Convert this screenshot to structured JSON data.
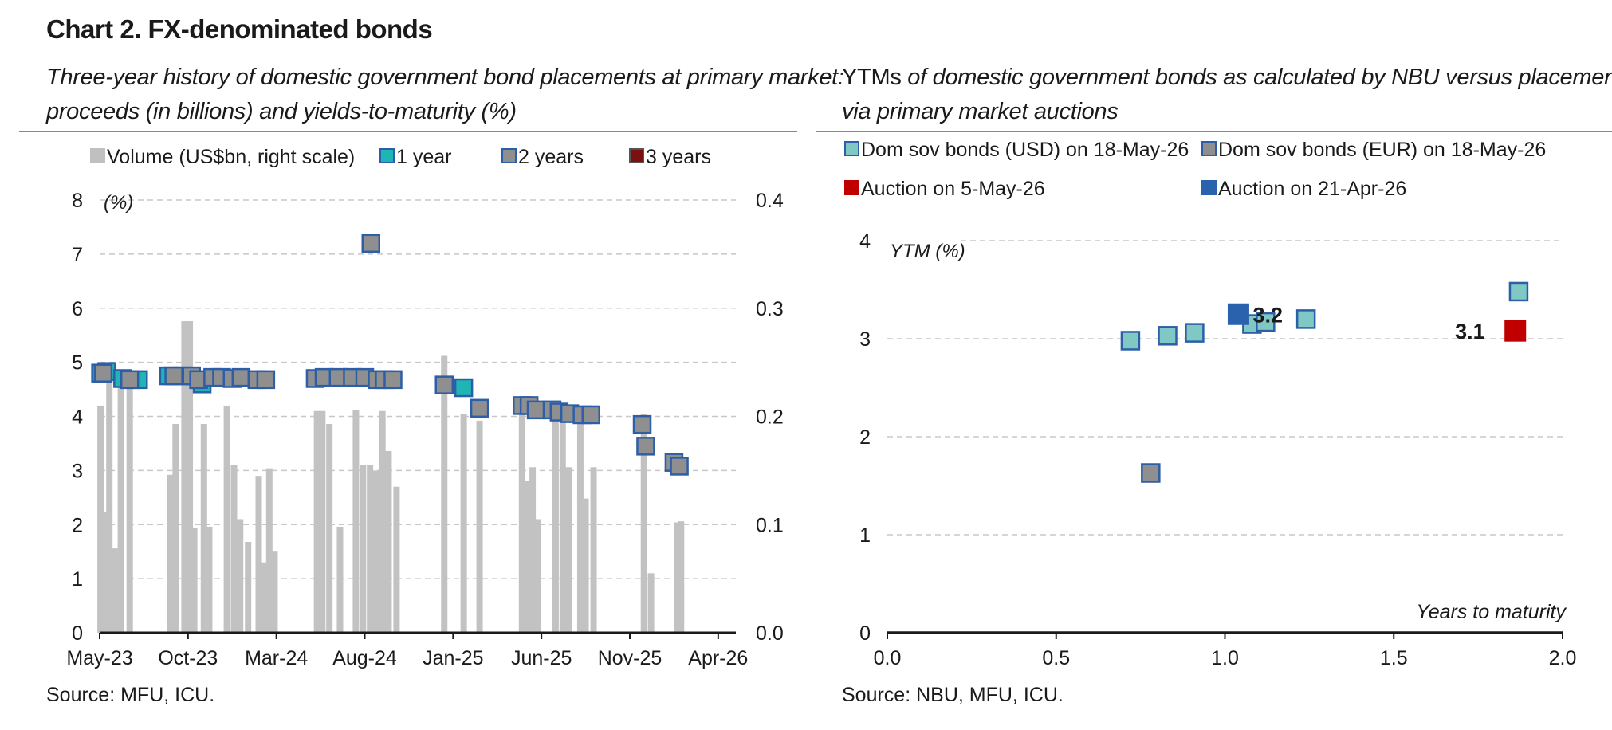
{
  "header": {
    "title": "Chart 2. FX-denominated bonds"
  },
  "left": {
    "subtitle_line1": "Three-year history of domestic government bond placements at primary market:",
    "subtitle_line2": "proceeds (in billions) and yields-to-maturity (%)",
    "source": "Source: MFU, ICU."
  },
  "right": {
    "subtitle_ytms": "YTMs",
    "subtitle_line1_rest": " of domestic government bonds as calculated by NBU versus placements",
    "subtitle_line2": "via primary market auctions",
    "source": "Source: NBU, MFU, ICU."
  },
  "chart_data": [
    {
      "type": "bar+scatter",
      "legend_position": "top",
      "left_axis": {
        "label": "(%)",
        "min": 0,
        "max": 8,
        "ticks": [
          "0",
          "1",
          "2",
          "3",
          "4",
          "5",
          "6",
          "7",
          "8"
        ]
      },
      "right_axis": {
        "min": 0,
        "max": 0.4,
        "ticks": [
          "0.0",
          "0.1",
          "0.2",
          "0.3",
          "0.4"
        ]
      },
      "x_ticks": [
        "May-23",
        "Oct-23",
        "Mar-24",
        "Aug-24",
        "Jan-25",
        "Jun-25",
        "Nov-25",
        "Apr-26"
      ],
      "x_range": [
        0,
        36
      ],
      "grid": true,
      "legend": [
        {
          "label": "Volume (US$bn, right scale)",
          "color": "#c0c0c0",
          "border": "#c0c0c0"
        },
        {
          "label": "1 year",
          "color": "#1fb5b5",
          "border": "#2c5fa8"
        },
        {
          "label": "2 years",
          "color": "#8f8f8f",
          "border": "#2c5fa8"
        },
        {
          "label": "3 years",
          "color": "#7a1010",
          "border": "#555555"
        }
      ],
      "volume_bars": [
        [
          0.05,
          0.21
        ],
        [
          0.2,
          0.112
        ],
        [
          0.55,
          0.235
        ],
        [
          0.85,
          0.078
        ],
        [
          1.2,
          0.228
        ],
        [
          1.7,
          0.235
        ],
        [
          4.0,
          0.146
        ],
        [
          4.3,
          0.193
        ],
        [
          4.8,
          0.288
        ],
        [
          5.1,
          0.288
        ],
        [
          5.35,
          0.097
        ],
        [
          5.9,
          0.193
        ],
        [
          6.2,
          0.098
        ],
        [
          7.2,
          0.21
        ],
        [
          7.6,
          0.155
        ],
        [
          7.95,
          0.105
        ],
        [
          8.4,
          0.084
        ],
        [
          9.0,
          0.145
        ],
        [
          9.3,
          0.065
        ],
        [
          9.6,
          0.152
        ],
        [
          9.9,
          0.075
        ],
        [
          12.3,
          0.205
        ],
        [
          12.6,
          0.205
        ],
        [
          13.0,
          0.193
        ],
        [
          13.6,
          0.098
        ],
        [
          14.5,
          0.206
        ],
        [
          14.9,
          0.155
        ],
        [
          15.3,
          0.155
        ],
        [
          15.65,
          0.15
        ],
        [
          16.0,
          0.205
        ],
        [
          16.35,
          0.168
        ],
        [
          16.8,
          0.135
        ],
        [
          19.5,
          0.256
        ],
        [
          20.6,
          0.202
        ],
        [
          21.5,
          0.196
        ],
        [
          23.9,
          0.212
        ],
        [
          24.2,
          0.14
        ],
        [
          24.5,
          0.153
        ],
        [
          24.8,
          0.105
        ],
        [
          25.8,
          0.212
        ],
        [
          26.2,
          0.205
        ],
        [
          26.55,
          0.153
        ],
        [
          27.2,
          0.205
        ],
        [
          27.5,
          0.124
        ],
        [
          27.95,
          0.153
        ],
        [
          30.8,
          0.202
        ],
        [
          31.2,
          0.055
        ],
        [
          32.7,
          0.102
        ],
        [
          32.9,
          0.103
        ]
      ],
      "yields_1y": [
        [
          0.05,
          4.8
        ],
        [
          0.4,
          4.83
        ],
        [
          1.3,
          4.7
        ],
        [
          2.2,
          4.68
        ],
        [
          3.9,
          4.75
        ],
        [
          4.7,
          4.75
        ],
        [
          5.8,
          4.6
        ],
        [
          20.6,
          4.53
        ]
      ],
      "yields_2y": [
        [
          0.2,
          4.8
        ],
        [
          1.7,
          4.68
        ],
        [
          4.2,
          4.75
        ],
        [
          5.2,
          4.75
        ],
        [
          5.6,
          4.68
        ],
        [
          6.4,
          4.72
        ],
        [
          6.9,
          4.72
        ],
        [
          7.5,
          4.7
        ],
        [
          8.0,
          4.72
        ],
        [
          8.9,
          4.68
        ],
        [
          9.4,
          4.68
        ],
        [
          12.2,
          4.7
        ],
        [
          12.7,
          4.72
        ],
        [
          13.5,
          4.72
        ],
        [
          14.3,
          4.72
        ],
        [
          15.0,
          4.72
        ],
        [
          15.35,
          7.2
        ],
        [
          15.7,
          4.68
        ],
        [
          16.1,
          4.68
        ],
        [
          16.6,
          4.68
        ],
        [
          19.5,
          4.58
        ],
        [
          21.5,
          4.15
        ],
        [
          23.9,
          4.2
        ],
        [
          24.3,
          4.2
        ],
        [
          24.7,
          4.12
        ],
        [
          25.6,
          4.12
        ],
        [
          26.0,
          4.08
        ],
        [
          26.6,
          4.05
        ],
        [
          27.3,
          4.03
        ],
        [
          27.8,
          4.03
        ],
        [
          30.7,
          3.85
        ],
        [
          30.9,
          3.45
        ],
        [
          32.5,
          3.15
        ],
        [
          32.8,
          3.08
        ]
      ]
    },
    {
      "type": "scatter",
      "x_label": "Years to maturity",
      "y_label": "YTM (%)",
      "x_range": [
        0,
        2
      ],
      "y_range": [
        0,
        4
      ],
      "x_ticks": [
        "0.0",
        "0.5",
        "1.0",
        "1.5",
        "2.0"
      ],
      "y_ticks": [
        "0",
        "1",
        "2",
        "3",
        "4"
      ],
      "grid": true,
      "legend_position": "top",
      "legend": [
        {
          "label": "Dom sov bonds (USD) on 18-May-26",
          "color": "#7fc8c3",
          "border": "#2c5fa8"
        },
        {
          "label": "Dom sov bonds (EUR) on 18-May-26",
          "color": "#8f8f8f",
          "border": "#2c5fa8"
        },
        {
          "label": "Auction on 5-May-26",
          "color": "#c00000",
          "border": "#c00000"
        },
        {
          "label": "Auction on 21-Apr-26",
          "color": "#2a62ad",
          "border": "#2a62ad"
        }
      ],
      "usd_points": [
        [
          0.72,
          2.98
        ],
        [
          0.83,
          3.03
        ],
        [
          0.91,
          3.06
        ],
        [
          1.08,
          3.15
        ],
        [
          1.12,
          3.17
        ],
        [
          1.24,
          3.2
        ],
        [
          1.87,
          3.48
        ]
      ],
      "eur_points": [
        [
          0.78,
          1.63
        ]
      ],
      "auction_may5": [
        {
          "x": 1.86,
          "y": 3.08,
          "label": "3.1"
        }
      ],
      "auction_apr21": [
        {
          "x": 1.04,
          "y": 3.25,
          "label": "3.2"
        }
      ]
    }
  ]
}
